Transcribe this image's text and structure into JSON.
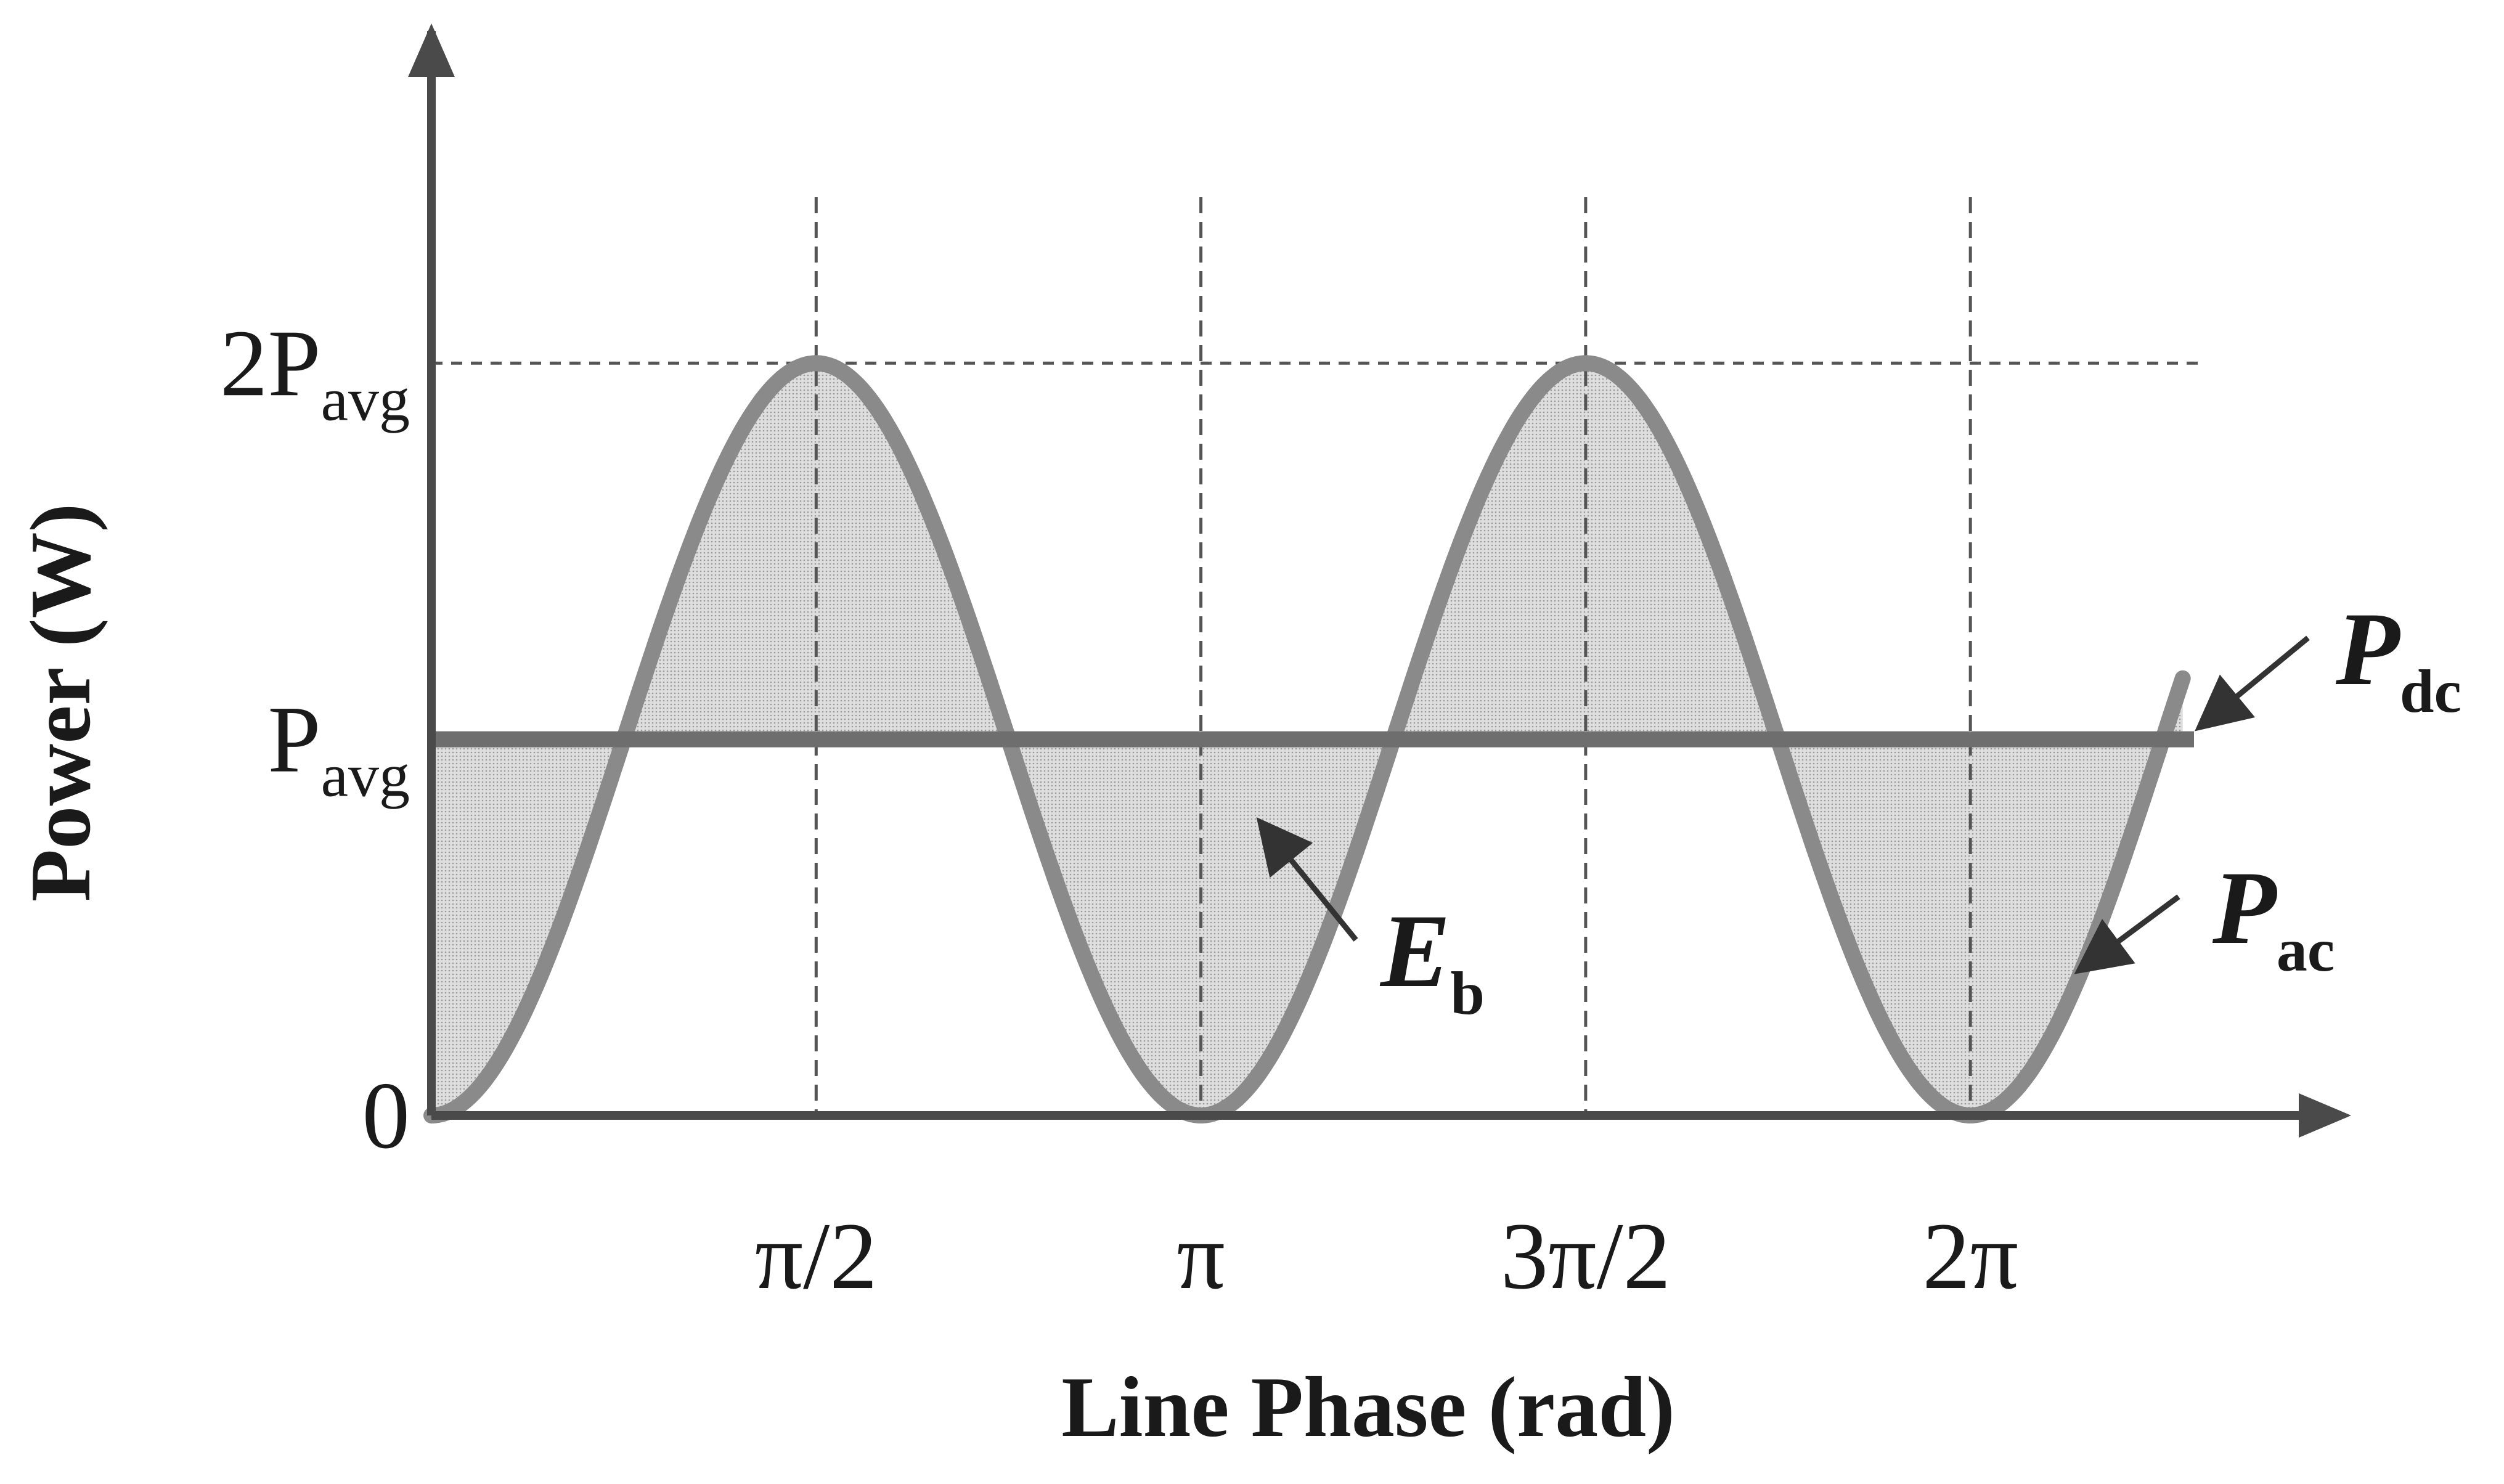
{
  "chart_data": {
    "type": "line",
    "title": "",
    "xlabel": "Line Phase (rad)",
    "ylabel": "Power (W)",
    "x_ticks": [
      {
        "value": 1.5708,
        "label": "π/2"
      },
      {
        "value": 3.1416,
        "label": "π"
      },
      {
        "value": 4.7124,
        "label": "3π/2"
      },
      {
        "value": 6.2832,
        "label": "2π"
      }
    ],
    "y_ticks": [
      {
        "value": 0,
        "label": "0"
      },
      {
        "value": 1,
        "label": "P",
        "sub": "avg"
      },
      {
        "value": 2,
        "label": "2P",
        "sub": "avg"
      }
    ],
    "xlim": [
      0,
      7.8
    ],
    "ylim": [
      0,
      2.9
    ],
    "grid": {
      "vertical_dashed_at": [
        1.5708,
        3.1416,
        4.7124,
        6.2832
      ],
      "horizontal_dashed_at": [
        2
      ]
    },
    "series": [
      {
        "name": "P",
        "name_sub": "ac",
        "function": "1 - cos(2x)",
        "x_range": [
          0,
          7.15
        ],
        "color": "#8a8a8a"
      },
      {
        "name": "P",
        "name_sub": "dc",
        "constant": 1,
        "x_range": [
          0,
          7.15
        ],
        "color": "#6e6e6e"
      }
    ],
    "shaded_region": {
      "between": [
        "P_ac",
        "P_dc"
      ],
      "label": "E",
      "label_sub": "b",
      "color": "#d2d2d2"
    }
  }
}
